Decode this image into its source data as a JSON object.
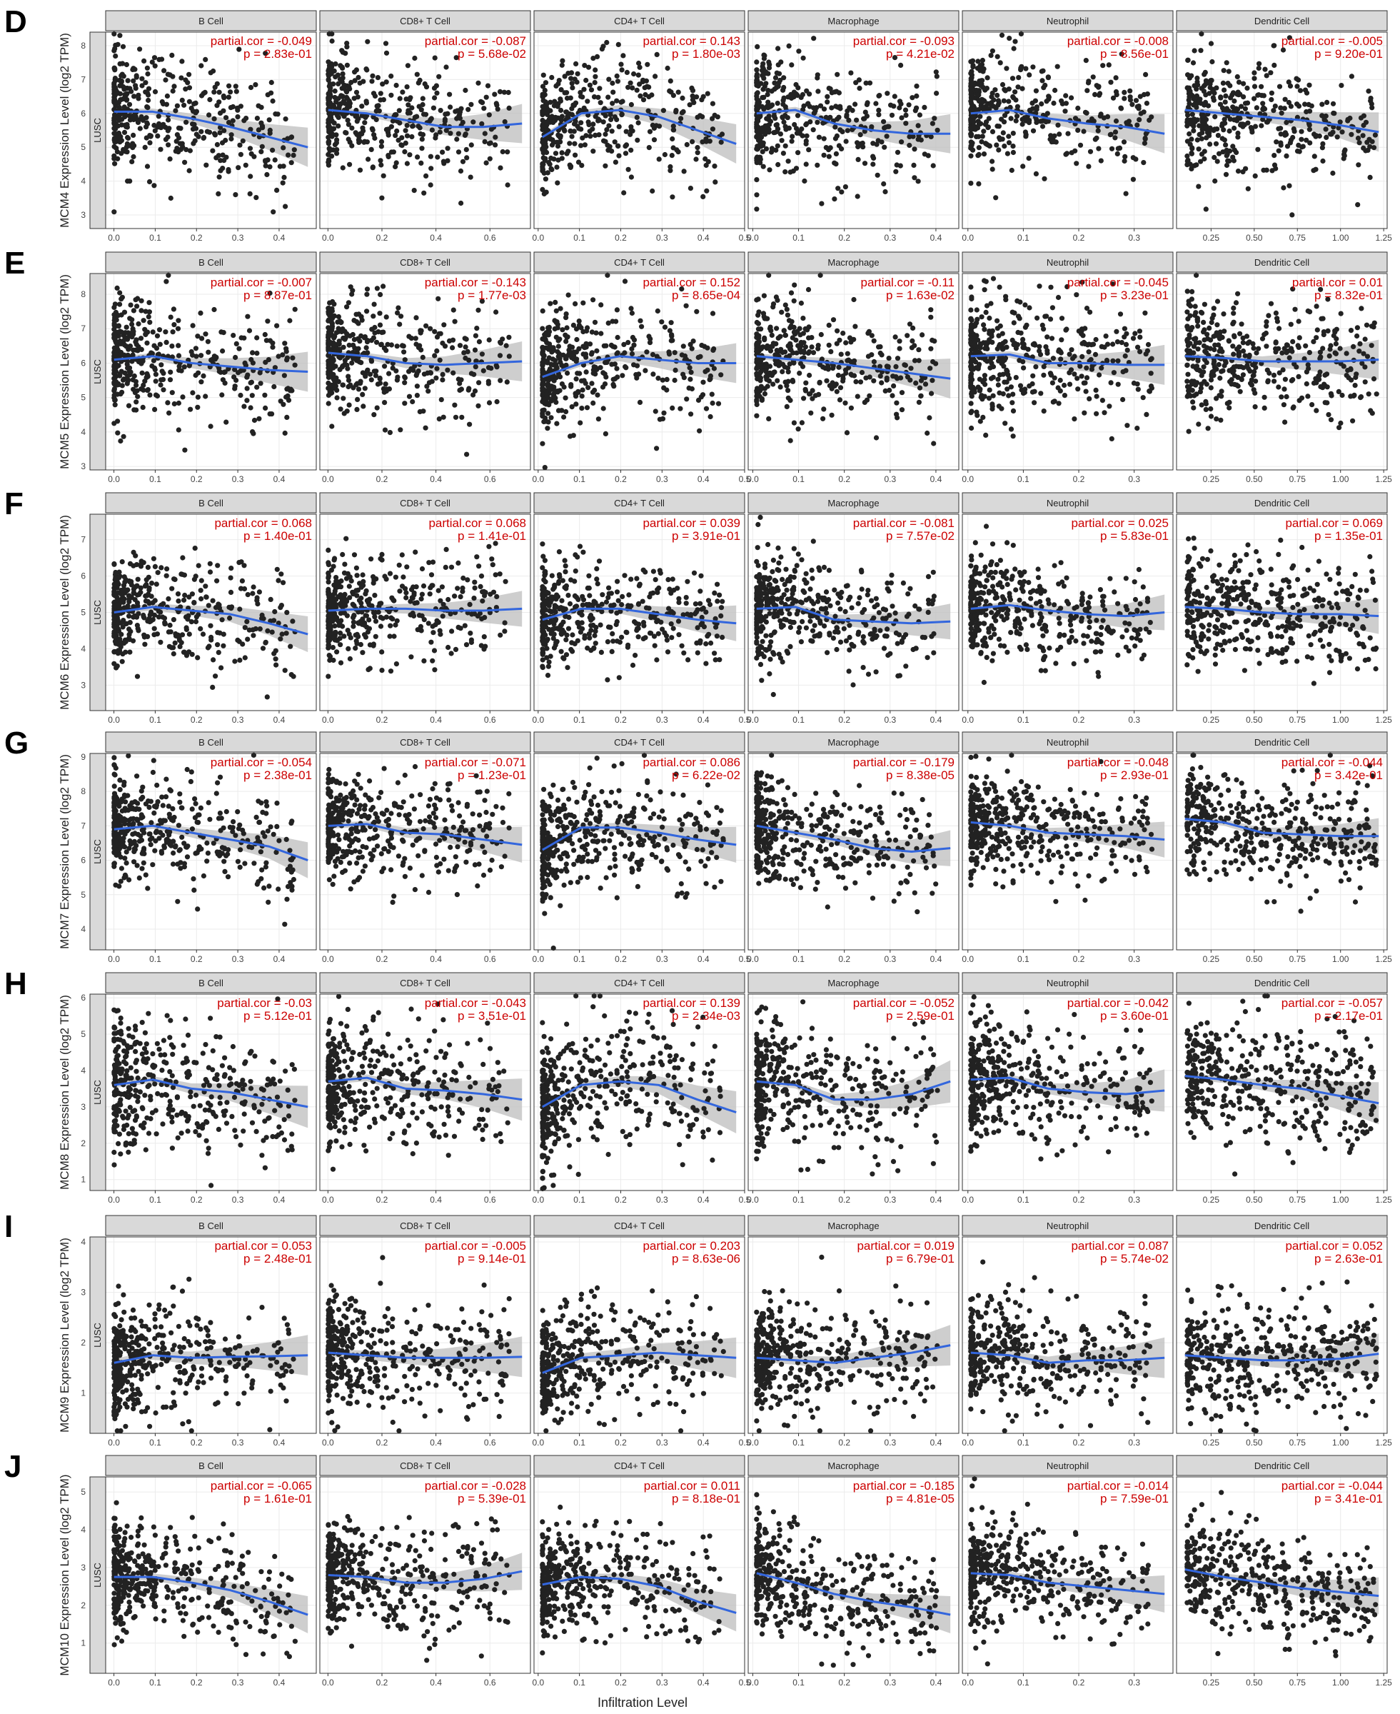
{
  "figure": {
    "x_axis_label": "Infiltration Level",
    "strip_label": "LUSC",
    "y_axis_suffix": " Expression Level (log2 TPM)",
    "colors": {
      "points": "#222222",
      "fit_line": "#3366dd",
      "ci_band": "#bdbdbd",
      "annotation": "#cc0000",
      "facet_header": "#d9d9d9",
      "grid": "#ebebeb"
    }
  },
  "chart_data": {
    "type": "scatter",
    "cell_types": [
      "B Cell",
      "CD8+ T Cell",
      "CD4+ T Cell",
      "Macrophage",
      "Neutrophil",
      "Dendritic Cell"
    ],
    "x_axes": [
      {
        "xlim": [
          -0.02,
          0.49
        ],
        "ticks": [
          0.0,
          0.1,
          0.2,
          0.3,
          0.4
        ],
        "labels": [
          "0.0",
          "0.1",
          "0.2",
          "0.3",
          "0.4"
        ]
      },
      {
        "xlim": [
          -0.03,
          0.75
        ],
        "ticks": [
          0.0,
          0.2,
          0.4,
          0.6
        ],
        "labels": [
          "0.0",
          "0.2",
          "0.4",
          "0.6"
        ]
      },
      {
        "xlim": [
          -0.01,
          0.5
        ],
        "ticks": [
          0.0,
          0.1,
          0.2,
          0.3,
          0.4,
          0.5
        ],
        "labels": [
          "0.0",
          "0.1",
          "0.2",
          "0.3",
          "0.4",
          "0.5"
        ]
      },
      {
        "xlim": [
          -0.01,
          0.45
        ],
        "ticks": [
          0.0,
          0.1,
          0.2,
          0.3,
          0.4
        ],
        "labels": [
          "0.0",
          "0.1",
          "0.2",
          "0.3",
          "0.4"
        ]
      },
      {
        "xlim": [
          -0.01,
          0.37
        ],
        "ticks": [
          0.0,
          0.1,
          0.2,
          0.3
        ],
        "labels": [
          "0.0",
          "0.1",
          "0.2",
          "0.3"
        ]
      },
      {
        "xlim": [
          0.05,
          1.27
        ],
        "ticks": [
          0.25,
          0.5,
          0.75,
          1.0,
          1.25
        ],
        "labels": [
          "0.25",
          "0.50",
          "0.75",
          "1.00",
          "1.25"
        ]
      }
    ],
    "rows": [
      {
        "panel": "D",
        "gene": "MCM4",
        "ylim": [
          2.6,
          8.4
        ],
        "yticks": [
          3,
          4,
          5,
          6,
          7,
          8
        ],
        "center": 6.0,
        "sd": 0.85,
        "stats": [
          {
            "cor": "-0.049",
            "p": "2.83e-01"
          },
          {
            "cor": "-0.087",
            "p": "5.68e-02"
          },
          {
            "cor": "0.143",
            "p": "1.80e-03"
          },
          {
            "cor": "-0.093",
            "p": "4.21e-02"
          },
          {
            "cor": "-0.008",
            "p": "8.56e-01"
          },
          {
            "cor": "-0.005",
            "p": "9.20e-01"
          }
        ],
        "fits": [
          [
            6.05,
            6.05,
            5.85,
            5.6,
            5.3,
            5.0
          ],
          [
            6.1,
            6.0,
            5.8,
            5.6,
            5.6,
            5.7
          ],
          [
            5.3,
            6.0,
            6.1,
            5.9,
            5.5,
            5.1
          ],
          [
            6.0,
            6.1,
            5.7,
            5.5,
            5.4,
            5.4
          ],
          [
            6.0,
            6.1,
            5.85,
            5.7,
            5.6,
            5.4
          ],
          [
            6.1,
            6.0,
            5.9,
            5.8,
            5.65,
            5.45
          ]
        ]
      },
      {
        "panel": "E",
        "gene": "MCM5",
        "ylim": [
          2.9,
          8.6
        ],
        "yticks": [
          3,
          4,
          5,
          6,
          7,
          8
        ],
        "center": 6.1,
        "sd": 0.85,
        "stats": [
          {
            "cor": "-0.007",
            "p": "8.87e-01"
          },
          {
            "cor": "-0.143",
            "p": "1.77e-03"
          },
          {
            "cor": "0.152",
            "p": "8.65e-04"
          },
          {
            "cor": "-0.11",
            "p": "1.63e-02"
          },
          {
            "cor": "-0.045",
            "p": "3.23e-01"
          },
          {
            "cor": "0.01",
            "p": "8.32e-01"
          }
        ],
        "fits": [
          [
            6.1,
            6.2,
            6.0,
            5.9,
            5.8,
            5.75
          ],
          [
            6.3,
            6.2,
            6.0,
            5.95,
            6.0,
            6.05
          ],
          [
            5.6,
            6.0,
            6.2,
            6.1,
            6.0,
            6.0
          ],
          [
            6.2,
            6.1,
            6.0,
            5.85,
            5.7,
            5.55
          ],
          [
            6.2,
            6.25,
            6.0,
            6.0,
            5.95,
            5.95
          ],
          [
            6.2,
            6.15,
            6.05,
            6.05,
            6.05,
            6.1
          ]
        ]
      },
      {
        "panel": "F",
        "gene": "MCM6",
        "ylim": [
          2.3,
          7.7
        ],
        "yticks": [
          3,
          4,
          5,
          6,
          7
        ],
        "center": 5.05,
        "sd": 0.7,
        "stats": [
          {
            "cor": "0.068",
            "p": "1.40e-01"
          },
          {
            "cor": "0.068",
            "p": "1.41e-01"
          },
          {
            "cor": "0.039",
            "p": "3.91e-01"
          },
          {
            "cor": "-0.081",
            "p": "7.57e-02"
          },
          {
            "cor": "0.025",
            "p": "5.83e-01"
          },
          {
            "cor": "0.069",
            "p": "1.35e-01"
          }
        ],
        "fits": [
          [
            5.0,
            5.15,
            5.05,
            4.95,
            4.7,
            4.4
          ],
          [
            5.05,
            5.1,
            5.1,
            5.05,
            5.05,
            5.1
          ],
          [
            4.8,
            5.1,
            5.1,
            4.95,
            4.8,
            4.7
          ],
          [
            5.1,
            5.15,
            4.8,
            4.75,
            4.7,
            4.75
          ],
          [
            5.1,
            5.2,
            5.05,
            4.95,
            4.9,
            5.0
          ],
          [
            5.15,
            5.1,
            5.0,
            4.95,
            4.95,
            4.9
          ]
        ]
      },
      {
        "panel": "G",
        "gene": "MCM7",
        "ylim": [
          3.4,
          9.1
        ],
        "yticks": [
          4,
          5,
          6,
          7,
          8,
          9
        ],
        "center": 6.9,
        "sd": 0.75,
        "stats": [
          {
            "cor": "-0.054",
            "p": "2.38e-01"
          },
          {
            "cor": "-0.071",
            "p": "1.23e-01"
          },
          {
            "cor": "0.086",
            "p": "6.22e-02"
          },
          {
            "cor": "-0.179",
            "p": "8.38e-05"
          },
          {
            "cor": "-0.048",
            "p": "2.93e-01"
          },
          {
            "cor": "-0.044",
            "p": "3.42e-01"
          }
        ],
        "fits": [
          [
            6.9,
            7.0,
            6.8,
            6.6,
            6.4,
            6.0
          ],
          [
            7.0,
            7.05,
            6.8,
            6.75,
            6.6,
            6.45
          ],
          [
            6.3,
            6.95,
            6.95,
            6.8,
            6.6,
            6.45
          ],
          [
            7.0,
            6.8,
            6.6,
            6.35,
            6.25,
            6.35
          ],
          [
            7.1,
            7.0,
            6.8,
            6.75,
            6.7,
            6.6
          ],
          [
            7.2,
            7.1,
            6.8,
            6.75,
            6.7,
            6.7
          ]
        ]
      },
      {
        "panel": "H",
        "gene": "MCM8",
        "ylim": [
          0.7,
          6.1
        ],
        "yticks": [
          1,
          2,
          3,
          4,
          5,
          6
        ],
        "center": 3.6,
        "sd": 0.85,
        "stats": [
          {
            "cor": "-0.03",
            "p": "5.12e-01"
          },
          {
            "cor": "-0.043",
            "p": "3.51e-01"
          },
          {
            "cor": "0.139",
            "p": "2.34e-03"
          },
          {
            "cor": "-0.052",
            "p": "2.59e-01"
          },
          {
            "cor": "-0.042",
            "p": "3.60e-01"
          },
          {
            "cor": "-0.057",
            "p": "2.17e-01"
          }
        ],
        "fits": [
          [
            3.6,
            3.75,
            3.5,
            3.4,
            3.2,
            3.0
          ],
          [
            3.7,
            3.8,
            3.5,
            3.45,
            3.35,
            3.2
          ],
          [
            3.0,
            3.6,
            3.7,
            3.6,
            3.2,
            2.85
          ],
          [
            3.7,
            3.6,
            3.2,
            3.2,
            3.35,
            3.7
          ],
          [
            3.75,
            3.8,
            3.5,
            3.4,
            3.35,
            3.45
          ],
          [
            3.85,
            3.75,
            3.6,
            3.5,
            3.3,
            3.1
          ]
        ]
      },
      {
        "panel": "I",
        "gene": "MCM9",
        "ylim": [
          0.2,
          4.1
        ],
        "yticks": [
          1,
          2,
          3,
          4
        ],
        "center": 1.7,
        "sd": 0.55,
        "stats": [
          {
            "cor": "0.053",
            "p": "2.48e-01"
          },
          {
            "cor": "-0.005",
            "p": "9.14e-01"
          },
          {
            "cor": "0.203",
            "p": "8.63e-06"
          },
          {
            "cor": "0.019",
            "p": "6.79e-01"
          },
          {
            "cor": "0.087",
            "p": "5.74e-02"
          },
          {
            "cor": "0.052",
            "p": "2.63e-01"
          }
        ],
        "fits": [
          [
            1.6,
            1.75,
            1.7,
            1.72,
            1.73,
            1.75
          ],
          [
            1.8,
            1.75,
            1.7,
            1.7,
            1.7,
            1.72
          ],
          [
            1.4,
            1.7,
            1.75,
            1.8,
            1.75,
            1.7
          ],
          [
            1.7,
            1.65,
            1.6,
            1.7,
            1.8,
            1.95
          ],
          [
            1.8,
            1.75,
            1.6,
            1.65,
            1.65,
            1.7
          ],
          [
            1.75,
            1.7,
            1.65,
            1.65,
            1.68,
            1.78
          ]
        ]
      },
      {
        "panel": "J",
        "gene": "MCM10",
        "ylim": [
          0.2,
          5.4
        ],
        "yticks": [
          1,
          2,
          3,
          4,
          5
        ],
        "center": 2.7,
        "sd": 0.7,
        "stats": [
          {
            "cor": "-0.065",
            "p": "1.61e-01"
          },
          {
            "cor": "-0.028",
            "p": "5.39e-01"
          },
          {
            "cor": "0.011",
            "p": "8.18e-01"
          },
          {
            "cor": "-0.185",
            "p": "4.81e-05"
          },
          {
            "cor": "-0.014",
            "p": "7.59e-01"
          },
          {
            "cor": "-0.044",
            "p": "3.41e-01"
          }
        ],
        "fits": [
          [
            2.75,
            2.75,
            2.6,
            2.4,
            2.1,
            1.75
          ],
          [
            2.8,
            2.75,
            2.6,
            2.6,
            2.7,
            2.9
          ],
          [
            2.55,
            2.75,
            2.7,
            2.5,
            2.1,
            1.8
          ],
          [
            2.85,
            2.6,
            2.3,
            2.1,
            1.95,
            1.75
          ],
          [
            2.85,
            2.8,
            2.6,
            2.5,
            2.4,
            2.3
          ],
          [
            2.95,
            2.75,
            2.6,
            2.45,
            2.35,
            2.25
          ]
        ]
      }
    ]
  }
}
